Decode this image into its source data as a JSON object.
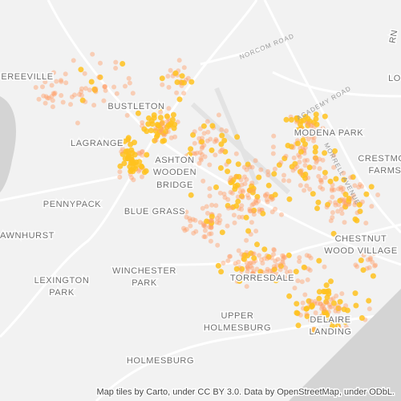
{
  "map": {
    "labels": [
      {
        "lines": [
          "EREEVILLE"
        ]
      },
      {
        "lines": [
          "BUSTLETON"
        ]
      },
      {
        "lines": [
          "LAGRANGE"
        ]
      },
      {
        "lines": [
          "ASHTON",
          "WOODEN",
          "BRIDGE"
        ]
      },
      {
        "lines": [
          "PENNYPACK"
        ]
      },
      {
        "lines": [
          "BLUE GRASS"
        ]
      },
      {
        "lines": [
          "AWNHURST"
        ]
      },
      {
        "lines": [
          "LEXINGTON",
          "PARK"
        ]
      },
      {
        "lines": [
          "WINCHESTER",
          "PARK"
        ]
      },
      {
        "lines": [
          "TORRESDALE"
        ]
      },
      {
        "lines": [
          "UPPER",
          "HOLMESBURG"
        ]
      },
      {
        "lines": [
          "HOLMESBURG"
        ]
      },
      {
        "lines": [
          "MODENA PARK"
        ]
      },
      {
        "lines": [
          "CRESTMO",
          "FARMS"
        ]
      },
      {
        "lines": [
          "CHESTNUT",
          "WOOD VILLAGE"
        ]
      },
      {
        "lines": [
          "DELAIRE",
          "LANDING"
        ]
      },
      {
        "lines": [
          "LO",
          "RN"
        ]
      }
    ],
    "roads": [
      "NORCOM ROAD",
      "ACADEMY ROAD",
      "MORRELL AVENUE"
    ],
    "attribution": "Map tiles by Carto, under CC BY 3.0. Data by OpenStreetMap, under ODbL."
  }
}
